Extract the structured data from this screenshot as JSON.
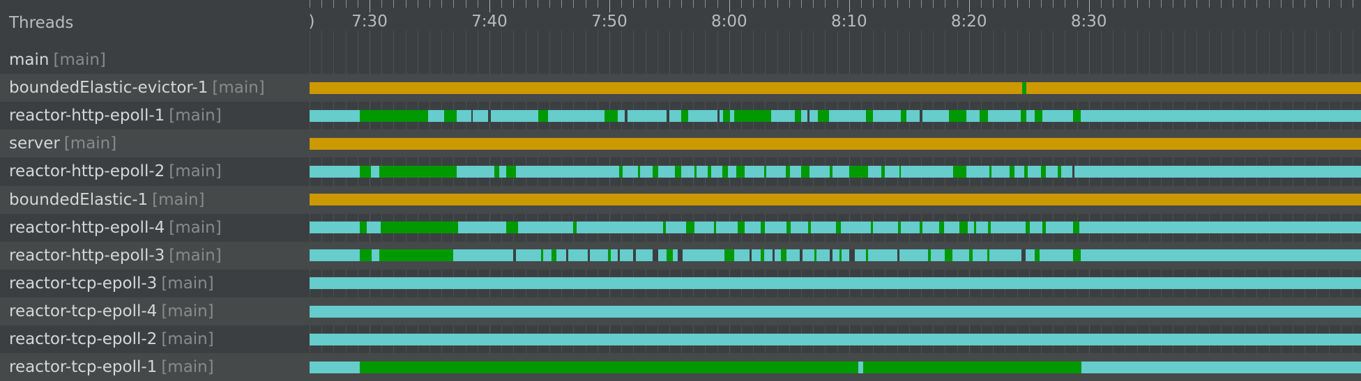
{
  "header": {
    "title": "Threads",
    "ruler_edge": ")"
  },
  "colors": {
    "running": "#66cccc",
    "active": "#009900",
    "waiting": "#cc9900",
    "gap": "#3c3f41"
  },
  "timeline": {
    "start_min": 445,
    "end_min": 532.7,
    "tick_labels": [
      {
        "label": "7:30",
        "min": 450
      },
      {
        "label": "7:40",
        "min": 460
      },
      {
        "label": "7:50",
        "min": 470
      },
      {
        "label": "8:00",
        "min": 480
      },
      {
        "label": "8:10",
        "min": 490
      },
      {
        "label": "8:20",
        "min": 500
      },
      {
        "label": "8:30",
        "min": 510
      }
    ]
  },
  "threads": [
    {
      "name": "main",
      "group": "[main]",
      "base": "none",
      "segments": []
    },
    {
      "name": "boundedElastic-evictor-1",
      "group": "[main]",
      "base": "waiting",
      "segments": [
        {
          "s": 504.45,
          "e": 504.8,
          "state": "active"
        }
      ]
    },
    {
      "name": "reactor-http-epoll-1",
      "group": "[main]",
      "base": "running",
      "segments": [
        {
          "s": 449.2,
          "e": 454.9,
          "state": "active"
        },
        {
          "s": 456.2,
          "e": 457.3,
          "state": "active"
        },
        {
          "s": 458.5,
          "e": 458.6,
          "state": "gap"
        },
        {
          "s": 459.9,
          "e": 460.1,
          "state": "gap"
        },
        {
          "s": 464.1,
          "e": 464.9,
          "state": "active"
        },
        {
          "s": 469.6,
          "e": 470.7,
          "state": "active"
        },
        {
          "s": 471.3,
          "e": 471.5,
          "state": "gap"
        },
        {
          "s": 474.8,
          "e": 475.0,
          "state": "gap"
        },
        {
          "s": 476.0,
          "e": 476.6,
          "state": "active"
        },
        {
          "s": 479.0,
          "e": 479.2,
          "state": "gap"
        },
        {
          "s": 479.5,
          "e": 480.1,
          "state": "active"
        },
        {
          "s": 480.4,
          "e": 483.5,
          "state": "active"
        },
        {
          "s": 485.5,
          "e": 486.0,
          "state": "active"
        },
        {
          "s": 486.5,
          "e": 486.7,
          "state": "gap"
        },
        {
          "s": 487.4,
          "e": 488.3,
          "state": "active"
        },
        {
          "s": 491.4,
          "e": 492.0,
          "state": "active"
        },
        {
          "s": 494.3,
          "e": 494.8,
          "state": "active"
        },
        {
          "s": 495.9,
          "e": 496.1,
          "state": "gap"
        },
        {
          "s": 498.3,
          "e": 499.8,
          "state": "active"
        },
        {
          "s": 500.9,
          "e": 501.6,
          "state": "active"
        },
        {
          "s": 504.3,
          "e": 504.8,
          "state": "active"
        },
        {
          "s": 505.5,
          "e": 506.1,
          "state": "active"
        },
        {
          "s": 508.7,
          "e": 509.3,
          "state": "active"
        }
      ]
    },
    {
      "name": "server",
      "group": "[main]",
      "base": "waiting",
      "segments": []
    },
    {
      "name": "reactor-http-epoll-2",
      "group": "[main]",
      "base": "running",
      "segments": [
        {
          "s": 449.2,
          "e": 450.1,
          "state": "active"
        },
        {
          "s": 450.8,
          "e": 457.3,
          "state": "active"
        },
        {
          "s": 460.4,
          "e": 460.8,
          "state": "active"
        },
        {
          "s": 461.4,
          "e": 462.2,
          "state": "active"
        },
        {
          "s": 470.8,
          "e": 471.1,
          "state": "active"
        },
        {
          "s": 472.4,
          "e": 472.6,
          "state": "active"
        },
        {
          "s": 473.6,
          "e": 474.1,
          "state": "active"
        },
        {
          "s": 475.5,
          "e": 476.0,
          "state": "active"
        },
        {
          "s": 477.1,
          "e": 477.3,
          "state": "active"
        },
        {
          "s": 478.2,
          "e": 478.5,
          "state": "active"
        },
        {
          "s": 479.4,
          "e": 479.9,
          "state": "active"
        },
        {
          "s": 480.6,
          "e": 481.3,
          "state": "active"
        },
        {
          "s": 482.9,
          "e": 483.1,
          "state": "active"
        },
        {
          "s": 484.7,
          "e": 485.1,
          "state": "active"
        },
        {
          "s": 486.0,
          "e": 486.7,
          "state": "active"
        },
        {
          "s": 488.4,
          "e": 488.6,
          "state": "active"
        },
        {
          "s": 490.0,
          "e": 491.6,
          "state": "active"
        },
        {
          "s": 492.7,
          "e": 493.0,
          "state": "active"
        },
        {
          "s": 494.2,
          "e": 494.3,
          "state": "active"
        },
        {
          "s": 498.7,
          "e": 499.8,
          "state": "active"
        },
        {
          "s": 501.7,
          "e": 501.9,
          "state": "active"
        },
        {
          "s": 503.4,
          "e": 503.8,
          "state": "active"
        },
        {
          "s": 504.6,
          "e": 504.9,
          "state": "active"
        },
        {
          "s": 506.0,
          "e": 506.4,
          "state": "active"
        },
        {
          "s": 507.4,
          "e": 507.7,
          "state": "active"
        },
        {
          "s": 508.6,
          "e": 508.8,
          "state": "gap"
        }
      ]
    },
    {
      "name": "boundedElastic-1",
      "group": "[main]",
      "base": "waiting",
      "segments": []
    },
    {
      "name": "reactor-http-epoll-4",
      "group": "[main]",
      "base": "running",
      "segments": [
        {
          "s": 449.2,
          "e": 449.8,
          "state": "active"
        },
        {
          "s": 450.9,
          "e": 457.4,
          "state": "active"
        },
        {
          "s": 461.4,
          "e": 462.4,
          "state": "active"
        },
        {
          "s": 467.0,
          "e": 467.3,
          "state": "active"
        },
        {
          "s": 474.5,
          "e": 474.7,
          "state": "active"
        },
        {
          "s": 476.4,
          "e": 477.1,
          "state": "active"
        },
        {
          "s": 478.7,
          "e": 478.9,
          "state": "active"
        },
        {
          "s": 480.7,
          "e": 481.3,
          "state": "active"
        },
        {
          "s": 482.6,
          "e": 483.0,
          "state": "active"
        },
        {
          "s": 484.8,
          "e": 485.1,
          "state": "active"
        },
        {
          "s": 486.6,
          "e": 486.8,
          "state": "active"
        },
        {
          "s": 488.9,
          "e": 489.3,
          "state": "active"
        },
        {
          "s": 491.8,
          "e": 492.0,
          "state": "active"
        },
        {
          "s": 494.1,
          "e": 494.3,
          "state": "active"
        },
        {
          "s": 495.9,
          "e": 496.1,
          "state": "active"
        },
        {
          "s": 497.5,
          "e": 497.9,
          "state": "active"
        },
        {
          "s": 499.2,
          "e": 499.9,
          "state": "active"
        },
        {
          "s": 500.4,
          "e": 500.6,
          "state": "active"
        },
        {
          "s": 501.6,
          "e": 501.8,
          "state": "active"
        },
        {
          "s": 504.7,
          "e": 505.1,
          "state": "active"
        },
        {
          "s": 506.1,
          "e": 506.4,
          "state": "active"
        },
        {
          "s": 508.7,
          "e": 509.2,
          "state": "active"
        }
      ]
    },
    {
      "name": "reactor-http-epoll-3",
      "group": "[main]",
      "base": "running",
      "segments": [
        {
          "s": 449.2,
          "e": 450.2,
          "state": "active"
        },
        {
          "s": 450.8,
          "e": 457.0,
          "state": "active"
        },
        {
          "s": 462.0,
          "e": 462.2,
          "state": "gap"
        },
        {
          "s": 464.3,
          "e": 464.5,
          "state": "active"
        },
        {
          "s": 465.2,
          "e": 465.6,
          "state": "active"
        },
        {
          "s": 466.4,
          "e": 466.6,
          "state": "gap"
        },
        {
          "s": 468.2,
          "e": 468.4,
          "state": "gap"
        },
        {
          "s": 469.9,
          "e": 470.1,
          "state": "active"
        },
        {
          "s": 470.7,
          "e": 470.9,
          "state": "gap"
        },
        {
          "s": 472.0,
          "e": 472.2,
          "state": "gap"
        },
        {
          "s": 473.6,
          "e": 474.1,
          "state": "gap"
        },
        {
          "s": 474.8,
          "e": 475.3,
          "state": "active"
        },
        {
          "s": 475.7,
          "e": 476.1,
          "state": "gap"
        },
        {
          "s": 479.6,
          "e": 480.4,
          "state": "active"
        },
        {
          "s": 481.7,
          "e": 481.9,
          "state": "gap"
        },
        {
          "s": 482.6,
          "e": 482.9,
          "state": "active"
        },
        {
          "s": 483.6,
          "e": 483.8,
          "state": "gap"
        },
        {
          "s": 484.3,
          "e": 484.8,
          "state": "active"
        },
        {
          "s": 485.9,
          "e": 486.1,
          "state": "gap"
        },
        {
          "s": 487.1,
          "e": 487.3,
          "state": "active"
        },
        {
          "s": 488.4,
          "e": 488.6,
          "state": "gap"
        },
        {
          "s": 489.2,
          "e": 489.4,
          "state": "active"
        },
        {
          "s": 490.0,
          "e": 490.5,
          "state": "gap"
        },
        {
          "s": 491.4,
          "e": 491.6,
          "state": "active"
        },
        {
          "s": 494.0,
          "e": 494.2,
          "state": "gap"
        },
        {
          "s": 496.6,
          "e": 496.8,
          "state": "active"
        },
        {
          "s": 498.0,
          "e": 498.6,
          "state": "active"
        },
        {
          "s": 500.0,
          "e": 500.3,
          "state": "active"
        },
        {
          "s": 501.5,
          "e": 501.7,
          "state": "active"
        },
        {
          "s": 504.4,
          "e": 504.7,
          "state": "gap"
        },
        {
          "s": 505.5,
          "e": 505.9,
          "state": "active"
        },
        {
          "s": 508.7,
          "e": 509.3,
          "state": "active"
        }
      ]
    },
    {
      "name": "reactor-tcp-epoll-3",
      "group": "[main]",
      "base": "running",
      "segments": []
    },
    {
      "name": "reactor-tcp-epoll-4",
      "group": "[main]",
      "base": "running",
      "segments": []
    },
    {
      "name": "reactor-tcp-epoll-2",
      "group": "[main]",
      "base": "running",
      "segments": []
    },
    {
      "name": "reactor-tcp-epoll-1",
      "group": "[main]",
      "base": "running",
      "segments": [
        {
          "s": 449.2,
          "e": 490.8,
          "state": "active"
        },
        {
          "s": 491.2,
          "e": 509.4,
          "state": "active"
        }
      ]
    }
  ]
}
